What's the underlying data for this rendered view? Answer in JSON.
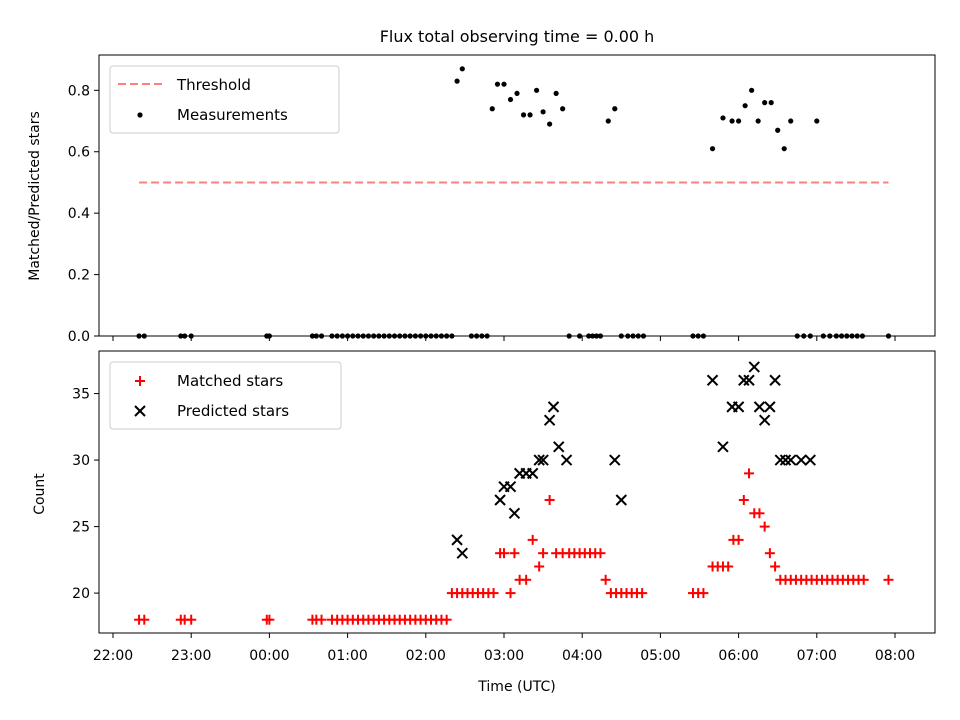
{
  "chart_data": [
    {
      "type": "scatter",
      "title": "Flux total observing time = 0.00 h",
      "xlabel": "",
      "ylabel": "Matched/Predicted stars",
      "ylim": [
        0,
        0.915
      ],
      "yticks": [
        "0.0",
        "0.2",
        "0.4",
        "0.6",
        "0.8"
      ],
      "ytick_values": [
        0,
        0.2,
        0.4,
        0.6,
        0.8
      ],
      "grid": false,
      "legend_position": "upper left",
      "threshold": {
        "name": "Threshold",
        "value": 0.5,
        "x_range": [
          "22:20",
          "07:55"
        ],
        "color": "#ff7f7f",
        "style": "dashed"
      },
      "series": [
        {
          "name": "Measurements",
          "color": "#000000",
          "marker": "dot",
          "x": [
            "22:20",
            "22:24",
            "22:52",
            "22:55",
            "23:00",
            "23:58",
            "00:00",
            "00:33",
            "00:36",
            "00:40",
            "00:48",
            "00:52",
            "00:56",
            "01:00",
            "01:04",
            "01:08",
            "01:12",
            "01:16",
            "01:20",
            "01:24",
            "01:28",
            "01:32",
            "01:36",
            "01:40",
            "01:44",
            "01:48",
            "01:52",
            "01:56",
            "02:00",
            "02:04",
            "02:08",
            "02:12",
            "02:16",
            "02:20",
            "02:24",
            "02:28",
            "02:35",
            "02:39",
            "02:43",
            "02:47",
            "02:51",
            "02:55",
            "03:00",
            "03:05",
            "03:10",
            "03:15",
            "03:20",
            "03:25",
            "03:30",
            "03:35",
            "03:40",
            "03:45",
            "03:50",
            "03:58",
            "04:05",
            "04:08",
            "04:11",
            "04:14",
            "04:20",
            "04:25",
            "04:30",
            "04:35",
            "04:39",
            "04:43",
            "04:47",
            "05:25",
            "05:29",
            "05:33",
            "05:40",
            "05:48",
            "05:55",
            "06:00",
            "06:05",
            "06:10",
            "06:15",
            "06:20",
            "06:25",
            "06:30",
            "06:35",
            "06:40",
            "06:45",
            "06:50",
            "06:55",
            "07:00",
            "07:05",
            "07:10",
            "07:15",
            "07:19",
            "07:23",
            "07:27",
            "07:31",
            "07:35",
            "07:55"
          ],
          "y": [
            0,
            0,
            0,
            0,
            0,
            0,
            0,
            0,
            0,
            0,
            0,
            0,
            0,
            0,
            0,
            0,
            0,
            0,
            0,
            0,
            0,
            0,
            0,
            0,
            0,
            0,
            0,
            0,
            0,
            0,
            0,
            0,
            0,
            0,
            0.83,
            0.87,
            0,
            0,
            0,
            0,
            0.74,
            0.82,
            0.82,
            0.77,
            0.79,
            0.72,
            0.72,
            0.8,
            0.73,
            0.69,
            0.79,
            0.74,
            0,
            0,
            0,
            0,
            0,
            0,
            0.7,
            0.74,
            0,
            0,
            0,
            0,
            0,
            0,
            0,
            0,
            0.61,
            0.71,
            0.7,
            0.7,
            0.75,
            0.8,
            0.7,
            0.76,
            0.76,
            0.67,
            0.61,
            0.7,
            0,
            0,
            0,
            0.7,
            0,
            0,
            0,
            0,
            0,
            0,
            0,
            0,
            0
          ]
        }
      ]
    },
    {
      "type": "scatter",
      "title": "",
      "xlabel": "Time (UTC)",
      "ylabel": "Count",
      "ylim": [
        17,
        38.2
      ],
      "yticks": [
        "20",
        "25",
        "30",
        "35"
      ],
      "ytick_values": [
        20,
        25,
        30,
        35
      ],
      "xticks": [
        "22:00",
        "23:00",
        "00:00",
        "01:00",
        "02:00",
        "03:00",
        "04:00",
        "05:00",
        "06:00",
        "07:00",
        "08:00"
      ],
      "grid": false,
      "legend_position": "upper left",
      "series": [
        {
          "name": "Matched stars",
          "color": "#ff0000",
          "marker": "plus",
          "x": [
            "22:20",
            "22:24",
            "22:52",
            "22:55",
            "23:00",
            "23:58",
            "00:00",
            "00:33",
            "00:36",
            "00:40",
            "00:48",
            "00:52",
            "00:56",
            "01:00",
            "01:04",
            "01:08",
            "01:12",
            "01:16",
            "01:20",
            "01:24",
            "01:28",
            "01:32",
            "01:36",
            "01:40",
            "01:44",
            "01:48",
            "01:52",
            "01:56",
            "02:00",
            "02:04",
            "02:08",
            "02:12",
            "02:16",
            "02:20",
            "02:24",
            "02:28",
            "02:32",
            "02:36",
            "02:40",
            "02:44",
            "02:48",
            "02:52",
            "02:57",
            "03:00",
            "03:05",
            "03:08",
            "03:12",
            "03:17",
            "03:22",
            "03:27",
            "03:30",
            "03:35",
            "03:40",
            "03:45",
            "03:50",
            "03:54",
            "03:58",
            "04:02",
            "04:06",
            "04:10",
            "04:14",
            "04:18",
            "04:22",
            "04:26",
            "04:30",
            "04:34",
            "04:38",
            "04:42",
            "04:46",
            "05:25",
            "05:29",
            "05:33",
            "05:40",
            "05:44",
            "05:48",
            "05:52",
            "05:56",
            "06:00",
            "06:04",
            "06:08",
            "06:12",
            "06:16",
            "06:20",
            "06:24",
            "06:28",
            "06:32",
            "06:36",
            "06:40",
            "06:44",
            "06:48",
            "06:52",
            "06:56",
            "07:00",
            "07:04",
            "07:08",
            "07:12",
            "07:16",
            "07:20",
            "07:24",
            "07:28",
            "07:32",
            "07:36",
            "07:55"
          ],
          "y": [
            18,
            18,
            18,
            18,
            18,
            18,
            18,
            18,
            18,
            18,
            18,
            18,
            18,
            18,
            18,
            18,
            18,
            18,
            18,
            18,
            18,
            18,
            18,
            18,
            18,
            18,
            18,
            18,
            18,
            18,
            18,
            18,
            18,
            20,
            20,
            20,
            20,
            20,
            20,
            20,
            20,
            20,
            23,
            23,
            20,
            23,
            21,
            21,
            24,
            22,
            23,
            27,
            23,
            23,
            23,
            23,
            23,
            23,
            23,
            23,
            23,
            21,
            20,
            20,
            20,
            20,
            20,
            20,
            20,
            20,
            20,
            20,
            22,
            22,
            22,
            22,
            24,
            24,
            27,
            29,
            26,
            26,
            25,
            23,
            22,
            21,
            21,
            21,
            21,
            21,
            21,
            21,
            21,
            21,
            21,
            21,
            21,
            21,
            21,
            21,
            21,
            21,
            21
          ]
        },
        {
          "name": "Predicted stars",
          "color": "#000000",
          "marker": "x",
          "x": [
            "02:24",
            "02:28",
            "02:57",
            "03:00",
            "03:05",
            "03:08",
            "03:12",
            "03:17",
            "03:22",
            "03:27",
            "03:30",
            "03:35",
            "03:38",
            "03:42",
            "03:48",
            "04:25",
            "04:30",
            "05:40",
            "05:48",
            "05:55",
            "06:00",
            "06:04",
            "06:08",
            "06:12",
            "06:16",
            "06:20",
            "06:24",
            "06:28",
            "06:32",
            "06:36",
            "06:40",
            "06:48",
            "06:55"
          ],
          "y": [
            24,
            23,
            27,
            28,
            28,
            26,
            29,
            29,
            29,
            30,
            30,
            33,
            34,
            31,
            30,
            30,
            27,
            36,
            31,
            34,
            34,
            36,
            36,
            37,
            34,
            33,
            34,
            36,
            30,
            30,
            30,
            30,
            30
          ]
        }
      ]
    }
  ]
}
